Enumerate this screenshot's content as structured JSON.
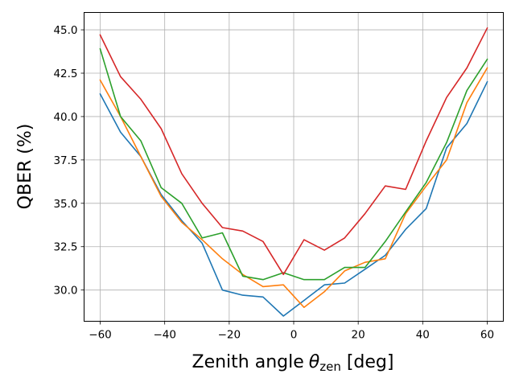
{
  "chart_data": {
    "type": "line",
    "xlabel": "Zenith angle",
    "xlabel_symbol": "θ",
    "xlabel_sub": "zen",
    "xlabel_unit": "[deg]",
    "ylabel": "QBER (%)",
    "xlim": [
      -65,
      65
    ],
    "ylim": [
      28.2,
      46.0
    ],
    "xticks": [
      -60,
      -40,
      -20,
      0,
      20,
      40,
      60
    ],
    "yticks": [
      30.0,
      32.5,
      35.0,
      37.5,
      40.0,
      42.5,
      45.0
    ],
    "xtick_labels": [
      "−60",
      "−40",
      "−20",
      "0",
      "20",
      "40",
      "60"
    ],
    "ytick_labels": [
      "30.0",
      "32.5",
      "35.0",
      "37.5",
      "40.0",
      "42.5",
      "45.0"
    ],
    "grid": true,
    "x": [
      -60,
      -53.7,
      -47.4,
      -41.1,
      -34.7,
      -28.4,
      -22.1,
      -15.8,
      -9.5,
      -3.2,
      3.2,
      9.5,
      15.8,
      22.1,
      28.4,
      34.7,
      41.1,
      47.4,
      53.7,
      60
    ],
    "series": [
      {
        "color": "#1f77b4",
        "values": [
          41.3,
          39.1,
          37.7,
          35.5,
          34.0,
          32.7,
          30.0,
          29.7,
          29.6,
          28.5,
          29.4,
          30.3,
          30.4,
          31.2,
          32.0,
          33.5,
          34.7,
          38.2,
          39.6,
          42.0
        ]
      },
      {
        "color": "#ff7f0e",
        "values": [
          42.1,
          40.0,
          37.7,
          35.4,
          33.9,
          32.9,
          31.8,
          30.9,
          30.2,
          30.3,
          29.0,
          29.9,
          31.1,
          31.6,
          31.8,
          34.4,
          36.0,
          37.5,
          40.8,
          42.8
        ]
      },
      {
        "color": "#2ca02c",
        "values": [
          43.9,
          40.0,
          38.6,
          35.9,
          35.0,
          33.0,
          33.3,
          30.8,
          30.6,
          31.0,
          30.6,
          30.6,
          31.3,
          31.3,
          32.8,
          34.5,
          36.2,
          38.5,
          41.5,
          43.3
        ]
      },
      {
        "color": "#d62728",
        "values": [
          44.7,
          42.3,
          41.0,
          39.3,
          36.7,
          35.0,
          33.6,
          33.4,
          32.8,
          30.9,
          32.9,
          32.3,
          33.0,
          34.4,
          36.0,
          35.8,
          38.6,
          41.1,
          42.8,
          45.1
        ]
      }
    ]
  }
}
